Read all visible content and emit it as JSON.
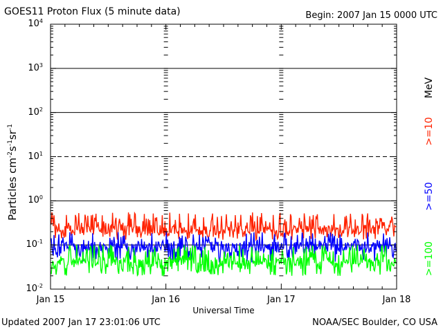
{
  "header": {
    "title": "GOES11 Proton Flux (5 minute data)",
    "begin": "Begin: 2007 Jan 15 0000 UTC"
  },
  "footer": {
    "updated": "Updated 2007 Jan 17 23:01:06 UTC",
    "source": "NOAA/SEC Boulder, CO USA"
  },
  "colors": {
    "ge10": "#ff2200",
    "ge50": "#0000ff",
    "ge100": "#00ff00"
  },
  "chart_data": {
    "type": "line",
    "title": "GOES11 Proton Flux (5 minute data)",
    "xlabel": "Universal Time",
    "ylabel": "Particles cm-2s-1sr-1",
    "xlim": [
      "2007-01-15",
      "2007-01-18"
    ],
    "x_ticks": [
      "Jan 15",
      "Jan 16",
      "Jan 17",
      "Jan 18"
    ],
    "y_scale": "log",
    "ylim": [
      0.01,
      10000
    ],
    "y_ticks": [
      {
        "base": "10",
        "exp": "4"
      },
      {
        "base": "10",
        "exp": "3"
      },
      {
        "base": "10",
        "exp": "2"
      },
      {
        "base": "10",
        "exp": "1"
      },
      {
        "base": "10",
        "exp": "0"
      },
      {
        "base": "10",
        "exp": "-1"
      },
      {
        "base": "10",
        "exp": "-2"
      }
    ],
    "thresholds": [
      {
        "value": 1000,
        "style": "solid"
      },
      {
        "value": 100,
        "style": "solid"
      },
      {
        "value": 10,
        "style": "dashed"
      },
      {
        "value": 1,
        "style": "solid"
      },
      {
        "value": 0.1,
        "style": "solid"
      }
    ],
    "legend_unit": "MeV",
    "series": [
      {
        "name": ">=10",
        "color": "#ff2200",
        "typical": 0.22,
        "min": 0.13,
        "max": 0.55
      },
      {
        "name": ">=50",
        "color": "#0000ff",
        "typical": 0.09,
        "min": 0.04,
        "max": 0.2
      },
      {
        "name": ">=100",
        "color": "#00ff00",
        "typical": 0.04,
        "min": 0.02,
        "max": 0.1
      }
    ]
  }
}
